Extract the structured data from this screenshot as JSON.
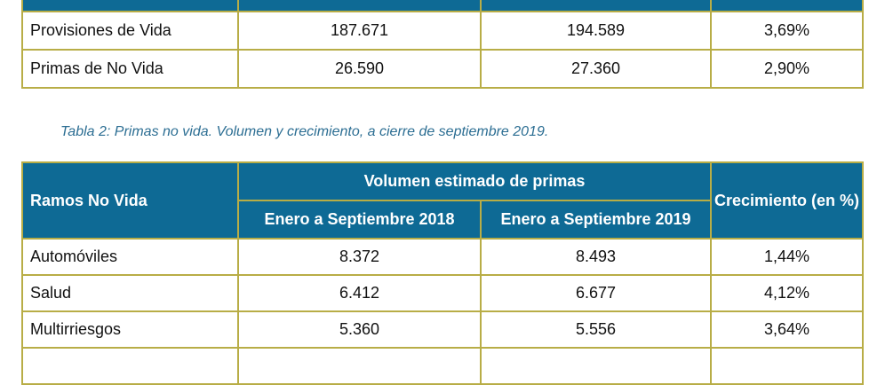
{
  "table1": {
    "rows": [
      {
        "label": "Provisiones de Vida",
        "v2018": "187.671",
        "v2019": "194.589",
        "growth": "3,69%"
      },
      {
        "label": "Primas de No Vida",
        "v2018": "26.590",
        "v2019": "27.360",
        "growth": "2,90%"
      }
    ]
  },
  "caption": "Tabla 2: Primas no vida. Volumen y crecimiento, a cierre de septiembre 2019.",
  "table2": {
    "header": {
      "ramos": "Ramos No Vida",
      "volumen": "Volumen estimado de primas",
      "period_2018": "Enero a Septiembre 2018",
      "period_2019": "Enero a Septiembre 2019",
      "growth": "Crecimiento (en %)"
    },
    "rows": [
      {
        "label": "Automóviles",
        "v2018": "8.372",
        "v2019": "8.493",
        "growth": "1,44%"
      },
      {
        "label": "Salud",
        "v2018": "6.412",
        "v2019": "6.677",
        "growth": "4,12%"
      },
      {
        "label": "Multirriesgos",
        "v2018": "5.360",
        "v2019": "5.556",
        "growth": "3,64%"
      }
    ]
  },
  "colors": {
    "header_bg": "#0e6a95",
    "border": "#b8ad46",
    "caption": "#2c6e93"
  }
}
